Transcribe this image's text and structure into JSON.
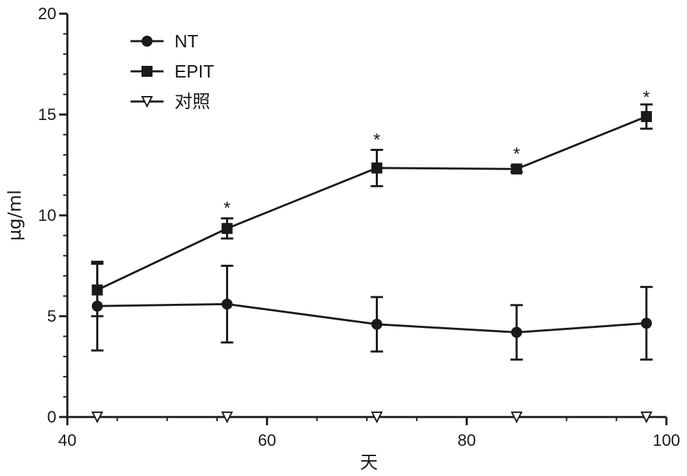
{
  "chart_data": {
    "type": "line",
    "xlabel": "天",
    "ylabel": "µg/ml",
    "xlim": [
      40,
      100
    ],
    "ylim": [
      0,
      20
    ],
    "xticks": [
      40,
      60,
      80,
      100
    ],
    "yticks": [
      0,
      5,
      10,
      15,
      20
    ],
    "grid": false,
    "legend_position": "top-left",
    "series": [
      {
        "name": "NT",
        "marker": "circle",
        "color": "#1a1a1a",
        "x": [
          43,
          56,
          71,
          85,
          98
        ],
        "y": [
          5.5,
          5.6,
          4.6,
          4.2,
          4.65
        ],
        "err": [
          2.2,
          1.9,
          1.35,
          1.35,
          1.8
        ]
      },
      {
        "name": "EPIT",
        "marker": "square",
        "color": "#1a1a1a",
        "x": [
          43,
          56,
          71,
          85,
          98
        ],
        "y": [
          6.3,
          9.35,
          12.35,
          12.3,
          14.9
        ],
        "err": [
          1.3,
          0.5,
          0.9,
          0.15,
          0.6
        ]
      },
      {
        "name": "对照",
        "marker": "triangle-down-open",
        "color": "#1a1a1a",
        "x": [
          43,
          56,
          71,
          85,
          98
        ],
        "y": [
          0,
          0,
          0,
          0,
          0
        ],
        "err": [
          0,
          0,
          0,
          0,
          0
        ]
      }
    ],
    "annotations": [
      {
        "text": "*",
        "x": 56,
        "y": 10.4
      },
      {
        "text": "*",
        "x": 71,
        "y": 13.8
      },
      {
        "text": "*",
        "x": 85,
        "y": 13.1
      },
      {
        "text": "*",
        "x": 98,
        "y": 15.9
      }
    ]
  }
}
